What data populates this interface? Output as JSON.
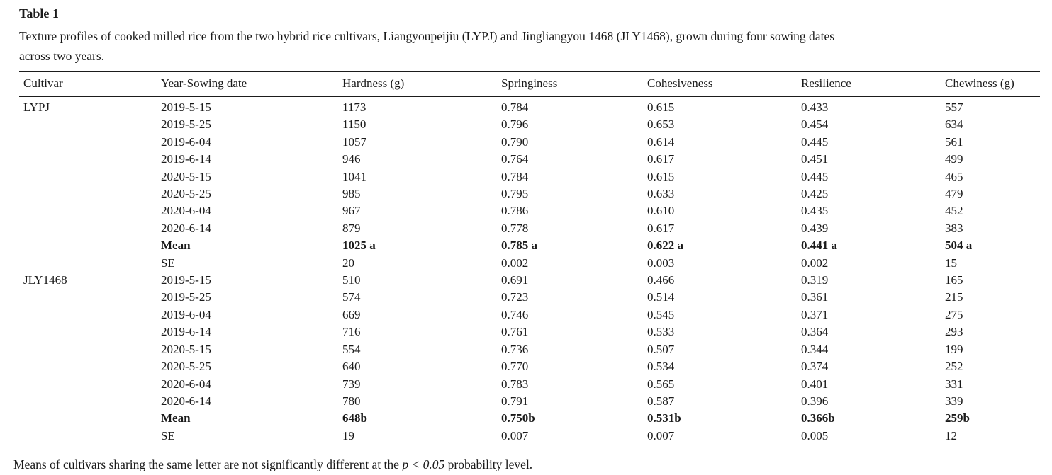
{
  "page": {
    "title": "Table 1",
    "caption_lines": [
      "Texture profiles of cooked milled rice from the two hybrid rice cultivars, Liangyoupeijiu (LYPJ) and Jingliangyou 1468 (JLY1468), grown during four sowing dates",
      "across two years."
    ],
    "footnote": {
      "prefix": "Means of cultivars sharing the same letter are not significantly different at the ",
      "italic": "p < 0.05",
      "suffix": " probability level."
    },
    "colors": {
      "text": "#1a1a1a",
      "rule": "#1b1b1b",
      "background": "#ffffff"
    }
  },
  "table": {
    "columns": [
      "Cultivar",
      "Year-Sowing date",
      "Hardness (g)",
      "Springiness",
      "Cohesiveness",
      "Resilience",
      "Chewiness (g)"
    ],
    "rows": [
      {
        "bold": false,
        "cells": [
          "LYPJ",
          "2019-5-15",
          "1173",
          "0.784",
          "0.615",
          "0.433",
          "557"
        ]
      },
      {
        "bold": false,
        "cells": [
          "",
          "2019-5-25",
          "1150",
          "0.796",
          "0.653",
          "0.454",
          "634"
        ]
      },
      {
        "bold": false,
        "cells": [
          "",
          "2019-6-04",
          "1057",
          "0.790",
          "0.614",
          "0.445",
          "561"
        ]
      },
      {
        "bold": false,
        "cells": [
          "",
          "2019-6-14",
          "946",
          "0.764",
          "0.617",
          "0.451",
          "499"
        ]
      },
      {
        "bold": false,
        "cells": [
          "",
          "2020-5-15",
          "1041",
          "0.784",
          "0.615",
          "0.445",
          "465"
        ]
      },
      {
        "bold": false,
        "cells": [
          "",
          "2020-5-25",
          "985",
          "0.795",
          "0.633",
          "0.425",
          "479"
        ]
      },
      {
        "bold": false,
        "cells": [
          "",
          "2020-6-04",
          "967",
          "0.786",
          "0.610",
          "0.435",
          "452"
        ]
      },
      {
        "bold": false,
        "cells": [
          "",
          "2020-6-14",
          "879",
          "0.778",
          "0.617",
          "0.439",
          "383"
        ]
      },
      {
        "bold": true,
        "cells": [
          "",
          "Mean",
          "1025 a",
          "0.785 a",
          "0.622 a",
          "0.441 a",
          "504 a"
        ]
      },
      {
        "bold": false,
        "cells": [
          "",
          "SE",
          "20",
          "0.002",
          "0.003",
          "0.002",
          "15"
        ]
      },
      {
        "bold": false,
        "cells": [
          "JLY1468",
          "2019-5-15",
          "510",
          "0.691",
          "0.466",
          "0.319",
          "165"
        ]
      },
      {
        "bold": false,
        "cells": [
          "",
          "2019-5-25",
          "574",
          "0.723",
          "0.514",
          "0.361",
          "215"
        ]
      },
      {
        "bold": false,
        "cells": [
          "",
          "2019-6-04",
          "669",
          "0.746",
          "0.545",
          "0.371",
          "275"
        ]
      },
      {
        "bold": false,
        "cells": [
          "",
          "2019-6-14",
          "716",
          "0.761",
          "0.533",
          "0.364",
          "293"
        ]
      },
      {
        "bold": false,
        "cells": [
          "",
          "2020-5-15",
          "554",
          "0.736",
          "0.507",
          "0.344",
          "199"
        ]
      },
      {
        "bold": false,
        "cells": [
          "",
          "2020-5-25",
          "640",
          "0.770",
          "0.534",
          "0.374",
          "252"
        ]
      },
      {
        "bold": false,
        "cells": [
          "",
          "2020-6-04",
          "739",
          "0.783",
          "0.565",
          "0.401",
          "331"
        ]
      },
      {
        "bold": false,
        "cells": [
          "",
          "2020-6-14",
          "780",
          "0.791",
          "0.587",
          "0.396",
          "339"
        ]
      },
      {
        "bold": true,
        "cells": [
          "",
          "Mean",
          "648b",
          "0.750b",
          "0.531b",
          "0.366b",
          "259b"
        ]
      },
      {
        "bold": false,
        "cells": [
          "",
          "SE",
          "19",
          "0.007",
          "0.007",
          "0.005",
          "12"
        ]
      }
    ]
  }
}
